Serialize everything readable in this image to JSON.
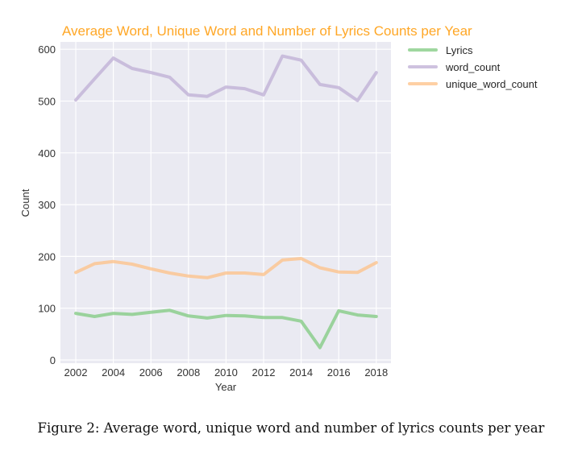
{
  "chart_data": {
    "type": "line",
    "title": "Average Word, Unique Word and Number of Lyrics Counts per Year",
    "xlabel": "Year",
    "ylabel": "Count",
    "x": [
      2002,
      2003,
      2004,
      2005,
      2006,
      2007,
      2008,
      2009,
      2010,
      2011,
      2012,
      2013,
      2014,
      2015,
      2016,
      2017,
      2018
    ],
    "xticks": [
      "2002",
      "2004",
      "2006",
      "2008",
      "2010",
      "2012",
      "2014",
      "2016",
      "2018"
    ],
    "yticks": [
      "0",
      "100",
      "200",
      "300",
      "400",
      "500",
      "600"
    ],
    "ylim": [
      0,
      620
    ],
    "xlim": [
      2001.2,
      2018.8
    ],
    "grid": true,
    "legend_position": "outside upper right",
    "series": [
      {
        "name": "Lyrics",
        "color": "#7fc97f",
        "values": [
          90,
          84,
          90,
          88,
          92,
          96,
          85,
          81,
          86,
          85,
          82,
          82,
          75,
          24,
          95,
          87,
          84
        ]
      },
      {
        "name": "word_count",
        "color": "#beaed4",
        "values": [
          502,
          543,
          583,
          563,
          555,
          546,
          512,
          509,
          527,
          524,
          512,
          587,
          579,
          532,
          526,
          501,
          555
        ]
      },
      {
        "name": "unique_word_count",
        "color": "#fdc086",
        "values": [
          169,
          186,
          190,
          185,
          176,
          168,
          162,
          159,
          168,
          168,
          165,
          193,
          196,
          178,
          170,
          169,
          188
        ]
      }
    ]
  },
  "caption": "Figure 2: Average word, unique word and number of lyrics counts per year"
}
